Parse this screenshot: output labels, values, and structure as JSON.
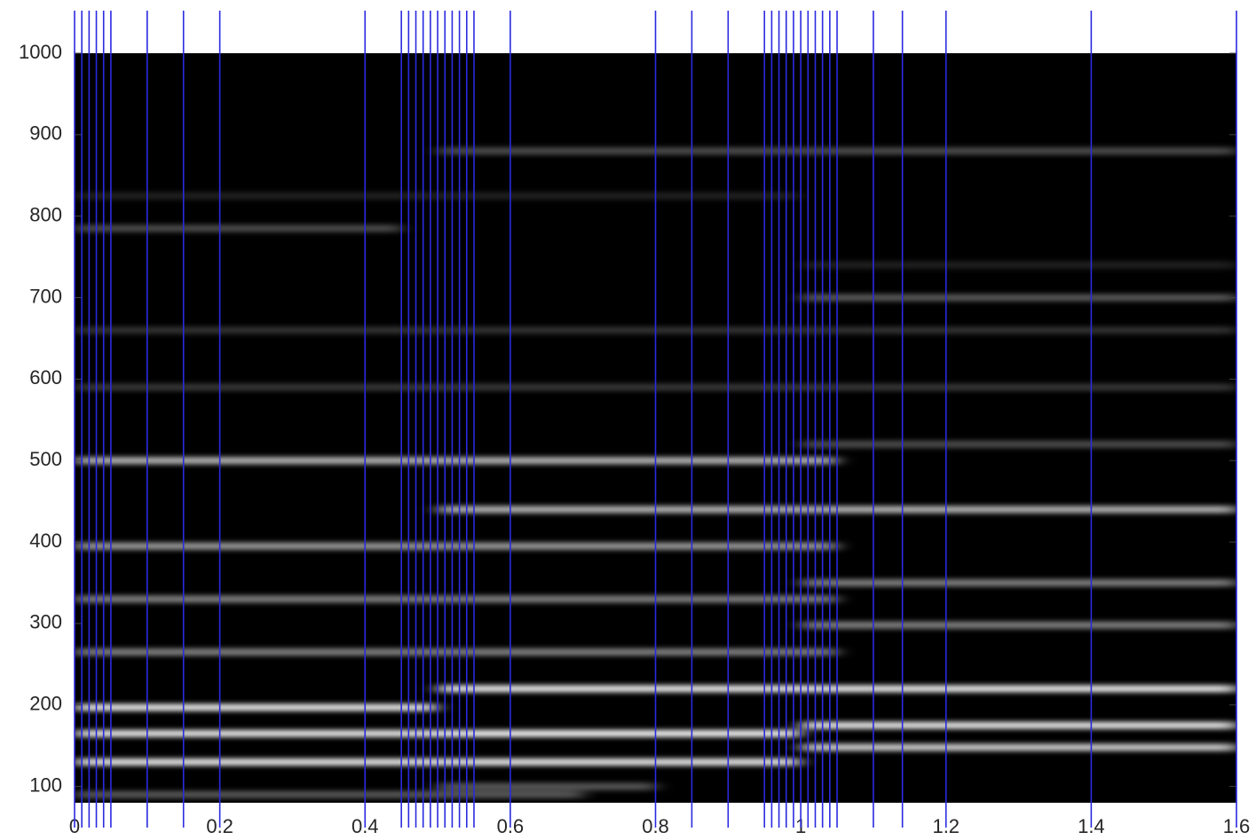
{
  "chart_data": {
    "type": "spectrogram",
    "xlim": [
      0,
      1.6
    ],
    "xticks": [
      0,
      0.2,
      0.4,
      0.6,
      0.8,
      1,
      1.2,
      1.4,
      1.6
    ],
    "ylim": [
      80,
      1000
    ],
    "yticks": [
      100,
      200,
      300,
      400,
      500,
      600,
      700,
      800,
      900,
      1000
    ],
    "background": "#000000",
    "band_color": "#ffffff",
    "marker_color": "#2a2ae0",
    "markers": [
      0,
      0.01,
      0.02,
      0.03,
      0.04,
      0.05,
      0.1,
      0.15,
      0.2,
      0.4,
      0.45,
      0.46,
      0.47,
      0.48,
      0.49,
      0.5,
      0.51,
      0.52,
      0.53,
      0.54,
      0.55,
      0.6,
      0.8,
      0.85,
      0.9,
      0.95,
      0.96,
      0.97,
      0.98,
      0.99,
      1,
      1.01,
      1.02,
      1.03,
      1.04,
      1.05,
      1.1,
      1.14,
      1.2,
      1.4,
      1.6
    ],
    "bands": [
      {
        "y": 785,
        "x0": 0,
        "x1": 0.45,
        "level": 0.3
      },
      {
        "y": 825,
        "x0": 0,
        "x1": 1.0,
        "level": 0.13
      },
      {
        "y": 660,
        "x0": 0,
        "x1": 1.6,
        "level": 0.2
      },
      {
        "y": 590,
        "x0": 0,
        "x1": 1.6,
        "level": 0.22
      },
      {
        "y": 500,
        "x0": 0,
        "x1": 1.05,
        "level": 0.7
      },
      {
        "y": 395,
        "x0": 0,
        "x1": 1.05,
        "level": 0.6
      },
      {
        "y": 330,
        "x0": 0,
        "x1": 1.05,
        "level": 0.5
      },
      {
        "y": 265,
        "x0": 0,
        "x1": 1.05,
        "level": 0.5
      },
      {
        "y": 197,
        "x0": 0,
        "x1": 0.5,
        "level": 0.9
      },
      {
        "y": 165,
        "x0": 0,
        "x1": 0.5,
        "level": 0.9
      },
      {
        "y": 130,
        "x0": 0,
        "x1": 0.5,
        "level": 0.9
      },
      {
        "y": 90,
        "x0": 0,
        "x1": 0.7,
        "level": 0.35
      },
      {
        "y": 880,
        "x0": 0.5,
        "x1": 1.6,
        "level": 0.3
      },
      {
        "y": 440,
        "x0": 0.5,
        "x1": 1.6,
        "level": 0.7
      },
      {
        "y": 220,
        "x0": 0.5,
        "x1": 1.6,
        "level": 0.9
      },
      {
        "y": 165,
        "x0": 0.5,
        "x1": 1.0,
        "level": 0.95
      },
      {
        "y": 130,
        "x0": 0.5,
        "x1": 1.0,
        "level": 0.9
      },
      {
        "y": 100,
        "x0": 0.5,
        "x1": 0.8,
        "level": 0.35
      },
      {
        "y": 740,
        "x0": 1.0,
        "x1": 1.6,
        "level": 0.13
      },
      {
        "y": 700,
        "x0": 1.0,
        "x1": 1.6,
        "level": 0.35
      },
      {
        "y": 520,
        "x0": 1.0,
        "x1": 1.6,
        "level": 0.3
      },
      {
        "y": 350,
        "x0": 1.0,
        "x1": 1.6,
        "level": 0.5
      },
      {
        "y": 298,
        "x0": 1.0,
        "x1": 1.6,
        "level": 0.5
      },
      {
        "y": 175,
        "x0": 1.0,
        "x1": 1.6,
        "level": 0.9
      },
      {
        "y": 148,
        "x0": 1.0,
        "x1": 1.6,
        "level": 0.8
      }
    ]
  }
}
